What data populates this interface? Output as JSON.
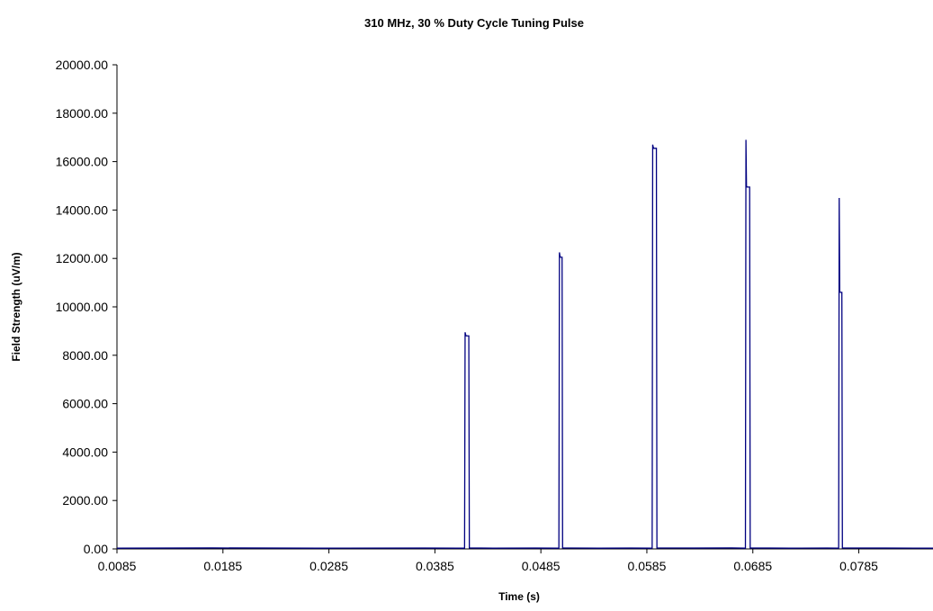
{
  "chart_data": {
    "type": "line",
    "title": "310 MHz, 30 % Duty Cycle Tuning Pulse",
    "xlabel": "Time (s)",
    "ylabel": "Field Strength (uV/m)",
    "xlim": [
      0.0085,
      0.0855
    ],
    "ylim": [
      0,
      20000
    ],
    "grid": false,
    "legend": "none",
    "x_ticks": [
      0.0085,
      0.0185,
      0.0285,
      0.0385,
      0.0485,
      0.0585,
      0.0685,
      0.0785
    ],
    "x_tick_labels": [
      "0.0085",
      "0.0185",
      "0.0285",
      "0.0385",
      "0.0485",
      "0.0585",
      "0.0685",
      "0.0785"
    ],
    "y_ticks": [
      0,
      2000,
      4000,
      6000,
      8000,
      10000,
      12000,
      14000,
      16000,
      18000,
      20000
    ],
    "y_tick_labels": [
      "0.00",
      "2000.00",
      "4000.00",
      "6000.00",
      "8000.00",
      "10000.00",
      "12000.00",
      "14000.00",
      "16000.00",
      "18000.00",
      "20000.00"
    ],
    "colors": {
      "series": "#000080"
    },
    "series": [
      {
        "x": [
          0.0085,
          0.0175,
          0.0275,
          0.0375,
          0.0413,
          0.04135,
          0.0414,
          0.04145,
          0.0417,
          0.04175,
          0.044,
          0.048,
          0.0502,
          0.05025,
          0.0503,
          0.05035,
          0.0505,
          0.05055,
          0.054,
          0.057,
          0.059,
          0.05905,
          0.0591,
          0.05915,
          0.0594,
          0.05945,
          0.063,
          0.0665,
          0.0678,
          0.06785,
          0.0679,
          0.06795,
          0.0682,
          0.06825,
          0.072,
          0.0755,
          0.0766,
          0.07665,
          0.0767,
          0.07675,
          0.0769,
          0.07695,
          0.081,
          0.0855
        ],
        "y": [
          30,
          40,
          30,
          35,
          30,
          8950,
          8850,
          8800,
          8800,
          40,
          30,
          35,
          30,
          12250,
          12100,
          12050,
          12050,
          40,
          30,
          35,
          30,
          16700,
          16600,
          16550,
          16550,
          40,
          35,
          40,
          30,
          16900,
          15000,
          14950,
          14950,
          40,
          30,
          35,
          30,
          14500,
          10650,
          10600,
          10600,
          40,
          35,
          30
        ]
      }
    ]
  }
}
